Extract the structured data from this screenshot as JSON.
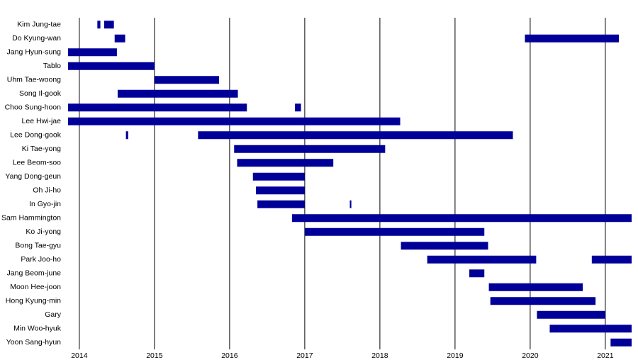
{
  "chart_data": {
    "type": "gantt",
    "color": "#000099",
    "grid": true,
    "xlim": [
      2013.85,
      2021.35
    ],
    "xticks": [
      2014,
      2015,
      2016,
      2017,
      2018,
      2019,
      2020,
      2021
    ],
    "tasks": [
      {
        "name": "Kim Jung-tae",
        "spans": [
          [
            2014.24,
            2014.28
          ],
          [
            2014.33,
            2014.46
          ]
        ]
      },
      {
        "name": "Do Kyung-wan",
        "spans": [
          [
            2014.47,
            2014.61
          ],
          [
            2019.93,
            2021.18
          ]
        ]
      },
      {
        "name": "Jang Hyun-sung",
        "spans": [
          [
            2013.85,
            2014.5
          ]
        ]
      },
      {
        "name": "Tablo",
        "spans": [
          [
            2013.85,
            2015.0
          ]
        ]
      },
      {
        "name": "Uhm Tae-woong",
        "spans": [
          [
            2015.0,
            2015.86
          ]
        ]
      },
      {
        "name": "Song Il-gook",
        "spans": [
          [
            2014.51,
            2016.11
          ]
        ]
      },
      {
        "name": "Choo Sung-hoon",
        "spans": [
          [
            2013.85,
            2016.23
          ],
          [
            2016.87,
            2016.95
          ]
        ]
      },
      {
        "name": "Lee Hwi-jae",
        "spans": [
          [
            2013.85,
            2018.27
          ]
        ]
      },
      {
        "name": "Lee Dong-gook",
        "spans": [
          [
            2014.62,
            2014.65
          ],
          [
            2015.58,
            2019.77
          ]
        ]
      },
      {
        "name": "Ki Tae-yong",
        "spans": [
          [
            2016.06,
            2018.07
          ]
        ]
      },
      {
        "name": "Lee Beom-soo",
        "spans": [
          [
            2016.1,
            2017.38
          ]
        ]
      },
      {
        "name": "Yang Dong-geun",
        "spans": [
          [
            2016.31,
            2017.0
          ]
        ]
      },
      {
        "name": "Oh Ji-ho",
        "spans": [
          [
            2016.35,
            2017.0
          ]
        ]
      },
      {
        "name": "In Gyo-jin",
        "spans": [
          [
            2016.37,
            2017.0
          ],
          [
            2017.6,
            2017.62
          ]
        ]
      },
      {
        "name": "Sam Hammington",
        "spans": [
          [
            2016.83,
            2021.35
          ]
        ]
      },
      {
        "name": "Ko Ji-yong",
        "spans": [
          [
            2017.0,
            2019.39
          ]
        ]
      },
      {
        "name": "Bong Tae-gyu",
        "spans": [
          [
            2018.28,
            2019.44
          ]
        ]
      },
      {
        "name": "Park Joo-ho",
        "spans": [
          [
            2018.63,
            2020.08
          ],
          [
            2020.82,
            2021.35
          ]
        ]
      },
      {
        "name": "Jang Beom-june",
        "spans": [
          [
            2019.19,
            2019.39
          ]
        ]
      },
      {
        "name": "Moon Hee-joon",
        "spans": [
          [
            2019.45,
            2020.7
          ]
        ]
      },
      {
        "name": "Hong Kyung-min",
        "spans": [
          [
            2019.47,
            2020.87
          ]
        ]
      },
      {
        "name": "Gary",
        "spans": [
          [
            2020.09,
            2021.0
          ]
        ]
      },
      {
        "name": "Min Woo-hyuk",
        "spans": [
          [
            2020.26,
            2021.35
          ]
        ]
      },
      {
        "name": "Yoon Sang-hyun",
        "spans": [
          [
            2021.07,
            2021.35
          ]
        ]
      }
    ]
  }
}
